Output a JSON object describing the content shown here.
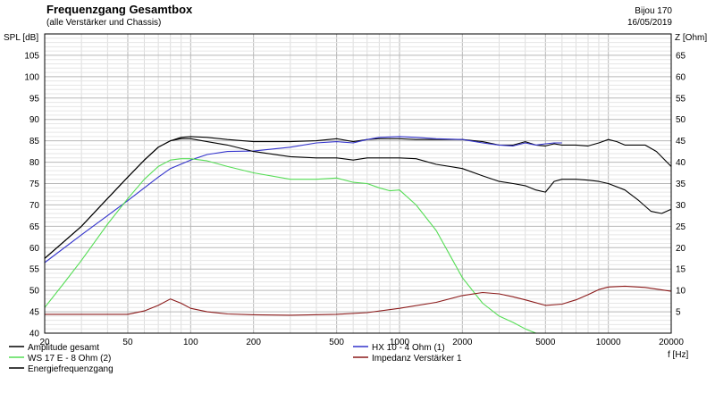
{
  "header": {
    "title": "Frequenzgang Gesamtbox",
    "subtitle": "(alle Verstärker und Chassis)",
    "project": "Bijou 170",
    "date": "16/05/2019"
  },
  "chart_data": {
    "type": "line",
    "xscale": "log",
    "xlim": [
      20,
      20000
    ],
    "ylim": [
      40,
      110
    ],
    "y2lim": [
      0,
      70
    ],
    "xlabel": "f [Hz]",
    "ylabel": "SPL [dB]",
    "y2label": "Z [Ohm]",
    "grid": true,
    "x_ticks": [
      20,
      50,
      100,
      200,
      500,
      1000,
      2000,
      5000,
      10000,
      20000
    ],
    "y_ticks": [
      40,
      45,
      50,
      55,
      60,
      65,
      70,
      75,
      80,
      85,
      90,
      95,
      100,
      105
    ],
    "y2_ticks": [
      5,
      10,
      15,
      20,
      25,
      30,
      35,
      40,
      45,
      50,
      55,
      60,
      65
    ],
    "series": [
      {
        "name": "Amplitude gesamt",
        "axis": "left",
        "color": "#000000",
        "x": [
          20,
          30,
          40,
          50,
          60,
          70,
          80,
          90,
          100,
          120,
          150,
          200,
          300,
          400,
          500,
          600,
          700,
          800,
          1000,
          1200,
          1500,
          2000,
          2500,
          3000,
          3500,
          4000,
          4500,
          5000,
          5500,
          6000,
          7000,
          8000,
          9000,
          10000,
          11000,
          12000,
          13000,
          15000,
          17000,
          20000
        ],
        "y": [
          57.5,
          65,
          71.5,
          76.5,
          80.5,
          83.5,
          85,
          85.8,
          86,
          85.8,
          85.3,
          84.8,
          84.8,
          85,
          85.5,
          84.8,
          85.3,
          85.5,
          85.5,
          85.3,
          85.3,
          85.3,
          84.8,
          84,
          84,
          84.8,
          84,
          83.8,
          84.3,
          84,
          84,
          83.8,
          84.5,
          85.3,
          84.8,
          84,
          84,
          84,
          82.5,
          79
        ]
      },
      {
        "name": "HX 10 - 4 Ohm  (1)",
        "axis": "left",
        "color": "#3333cc",
        "x": [
          20,
          30,
          40,
          50,
          60,
          70,
          80,
          100,
          120,
          150,
          200,
          300,
          400,
          500,
          600,
          700,
          800,
          1000,
          1200,
          1500,
          2000,
          2500,
          3000,
          3500,
          4000,
          4500,
          5000,
          5500,
          6000
        ],
        "y": [
          56.5,
          63,
          67.5,
          71,
          74,
          76.5,
          78.5,
          80.5,
          81.8,
          82.5,
          82.6,
          83.5,
          84.5,
          84.8,
          84.5,
          85.3,
          85.8,
          86,
          85.8,
          85.5,
          85.3,
          84.5,
          84,
          83.8,
          84.5,
          84,
          84.3,
          84.5,
          84.5
        ]
      },
      {
        "name": "WS 17 E - 8 Ohm    (2)",
        "axis": "left",
        "color": "#55dd55",
        "x": [
          20,
          25,
          30,
          40,
          50,
          60,
          70,
          80,
          90,
          100,
          120,
          150,
          200,
          300,
          400,
          500,
          600,
          700,
          800,
          900,
          1000,
          1200,
          1500,
          2000,
          2500,
          3000,
          3500,
          4000,
          4500,
          5000,
          6000,
          8000,
          10000,
          20000
        ],
        "y": [
          46,
          52,
          57,
          65.5,
          71.5,
          76,
          79,
          80.5,
          80.8,
          80.8,
          80.3,
          79,
          77.5,
          76,
          76,
          76.3,
          75.3,
          75,
          74,
          73.3,
          73.5,
          70,
          64,
          53,
          47,
          44,
          42.5,
          41,
          40,
          37,
          37,
          37,
          37,
          37
        ]
      },
      {
        "name": "Energiefrequenzgang",
        "axis": "left",
        "color": "#000000",
        "x": [
          20,
          30,
          40,
          50,
          60,
          70,
          80,
          90,
          100,
          120,
          150,
          200,
          300,
          400,
          500,
          600,
          700,
          800,
          1000,
          1200,
          1500,
          2000,
          2500,
          3000,
          3500,
          4000,
          4500,
          5000,
          5500,
          6000,
          7000,
          8000,
          9000,
          10000,
          12000,
          14000,
          16000,
          18000,
          20000
        ],
        "y": [
          57.5,
          65,
          71.5,
          76.5,
          80.5,
          83.5,
          85,
          85.5,
          85.5,
          84.8,
          84,
          82.5,
          81.3,
          81,
          81,
          80.5,
          81,
          81,
          81,
          80.8,
          79.5,
          78.5,
          76.8,
          75.5,
          75,
          74.5,
          73.5,
          73,
          75.5,
          76,
          76,
          75.8,
          75.5,
          75,
          73.5,
          71,
          68.5,
          68,
          69
        ]
      },
      {
        "name": "Impedanz Verstärker 1",
        "axis": "right",
        "color": "#8b1a1a",
        "x": [
          20,
          30,
          40,
          50,
          60,
          70,
          80,
          90,
          100,
          120,
          150,
          200,
          300,
          500,
          700,
          1000,
          1500,
          2000,
          2500,
          3000,
          3500,
          4000,
          5000,
          6000,
          7000,
          8000,
          9000,
          10000,
          12000,
          15000,
          20000
        ],
        "y": [
          4.4,
          4.4,
          4.4,
          4.4,
          5.2,
          6.5,
          8,
          7,
          5.8,
          5,
          4.5,
          4.3,
          4.2,
          4.4,
          4.8,
          5.8,
          7.2,
          8.8,
          9.5,
          9.2,
          8.5,
          7.8,
          6.5,
          6.8,
          7.8,
          9,
          10.2,
          10.8,
          11,
          10.7,
          9.8
        ]
      }
    ],
    "legend": [
      "Amplitude gesamt",
      "WS 17 E - 8 Ohm    (2)",
      "Energiefrequenzgang",
      "HX 10 - 4 Ohm  (1)",
      "Impedanz Verstärker 1"
    ]
  }
}
